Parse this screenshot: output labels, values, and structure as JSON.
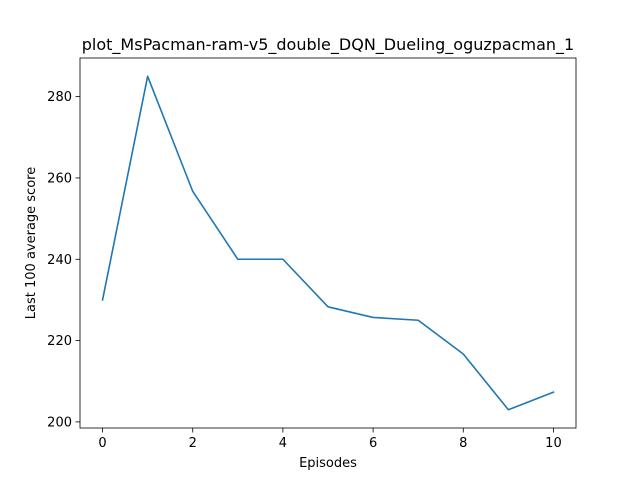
{
  "chart_data": {
    "type": "line",
    "title": "plot_MsPacman-ram-v5_double_DQN_Dueling_oguzpacman_1",
    "xlabel": "Episodes",
    "ylabel": "Last 100 average score",
    "xlim": [
      -0.5,
      10.5
    ],
    "ylim": [
      198.5,
      289.5
    ],
    "xticks": [
      0,
      2,
      4,
      6,
      8,
      10
    ],
    "yticks": [
      200,
      220,
      240,
      260,
      280
    ],
    "grid": false,
    "series": [
      {
        "color": "#1f77b4",
        "x": [
          0,
          1,
          2,
          3,
          4,
          5,
          6,
          7,
          8,
          9,
          10
        ],
        "y": [
          230,
          285,
          256.7,
          240,
          240,
          228.3,
          225.7,
          225,
          216.7,
          203,
          207.3
        ]
      }
    ]
  }
}
